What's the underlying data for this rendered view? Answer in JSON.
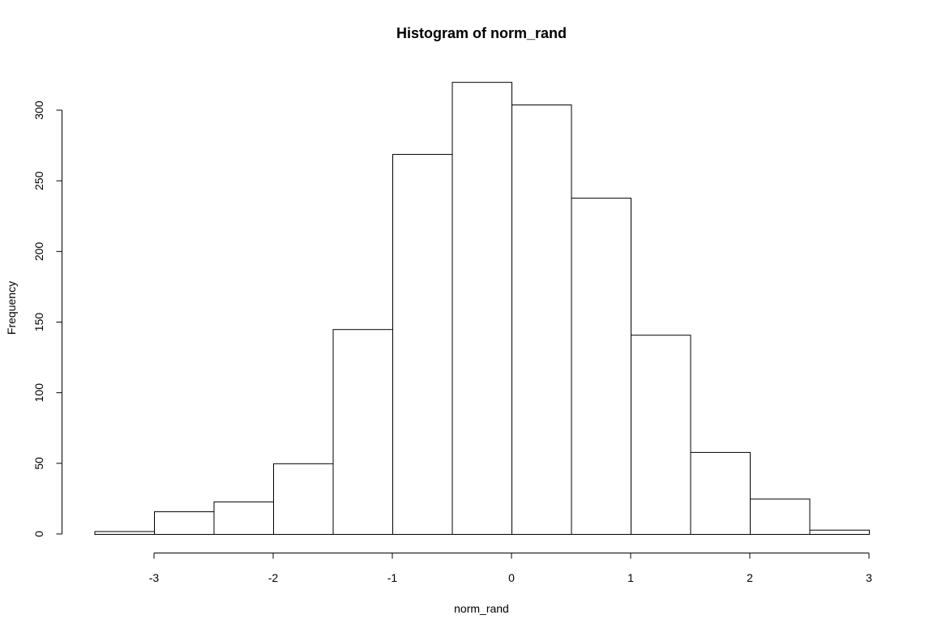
{
  "chart_data": {
    "type": "bar",
    "title": "Histogram of norm_rand",
    "xlabel": "norm_rand",
    "ylabel": "Frequency",
    "bins": [
      {
        "from": -3.5,
        "to": -3.0,
        "count": 2
      },
      {
        "from": -3.0,
        "to": -2.5,
        "count": 16
      },
      {
        "from": -2.5,
        "to": -2.0,
        "count": 23
      },
      {
        "from": -2.0,
        "to": -1.5,
        "count": 50
      },
      {
        "from": -1.5,
        "to": -1.0,
        "count": 145
      },
      {
        "from": -1.0,
        "to": -0.5,
        "count": 269
      },
      {
        "from": -0.5,
        "to": 0.0,
        "count": 320
      },
      {
        "from": 0.0,
        "to": 0.5,
        "count": 304
      },
      {
        "from": 0.5,
        "to": 1.0,
        "count": 238
      },
      {
        "from": 1.0,
        "to": 1.5,
        "count": 141
      },
      {
        "from": 1.5,
        "to": 2.0,
        "count": 58
      },
      {
        "from": 2.0,
        "to": 2.5,
        "count": 25
      },
      {
        "from": 2.5,
        "to": 3.0,
        "count": 3
      }
    ],
    "xticks": [
      -3,
      -2,
      -1,
      0,
      1,
      2,
      3
    ],
    "xtick_labels": [
      "-3",
      "-2",
      "-1",
      "0",
      "1",
      "2",
      "3"
    ],
    "yticks": [
      0,
      50,
      100,
      150,
      200,
      250,
      300
    ],
    "ytick_labels": [
      "0",
      "50",
      "100",
      "150",
      "200",
      "250",
      "300"
    ],
    "xlim": [
      -3.5,
      3.0
    ],
    "ylim": [
      0,
      320
    ],
    "grid": false,
    "legend": "none",
    "colors": {
      "bar_fill": "#ffffff",
      "bar_stroke": "#000000"
    }
  }
}
